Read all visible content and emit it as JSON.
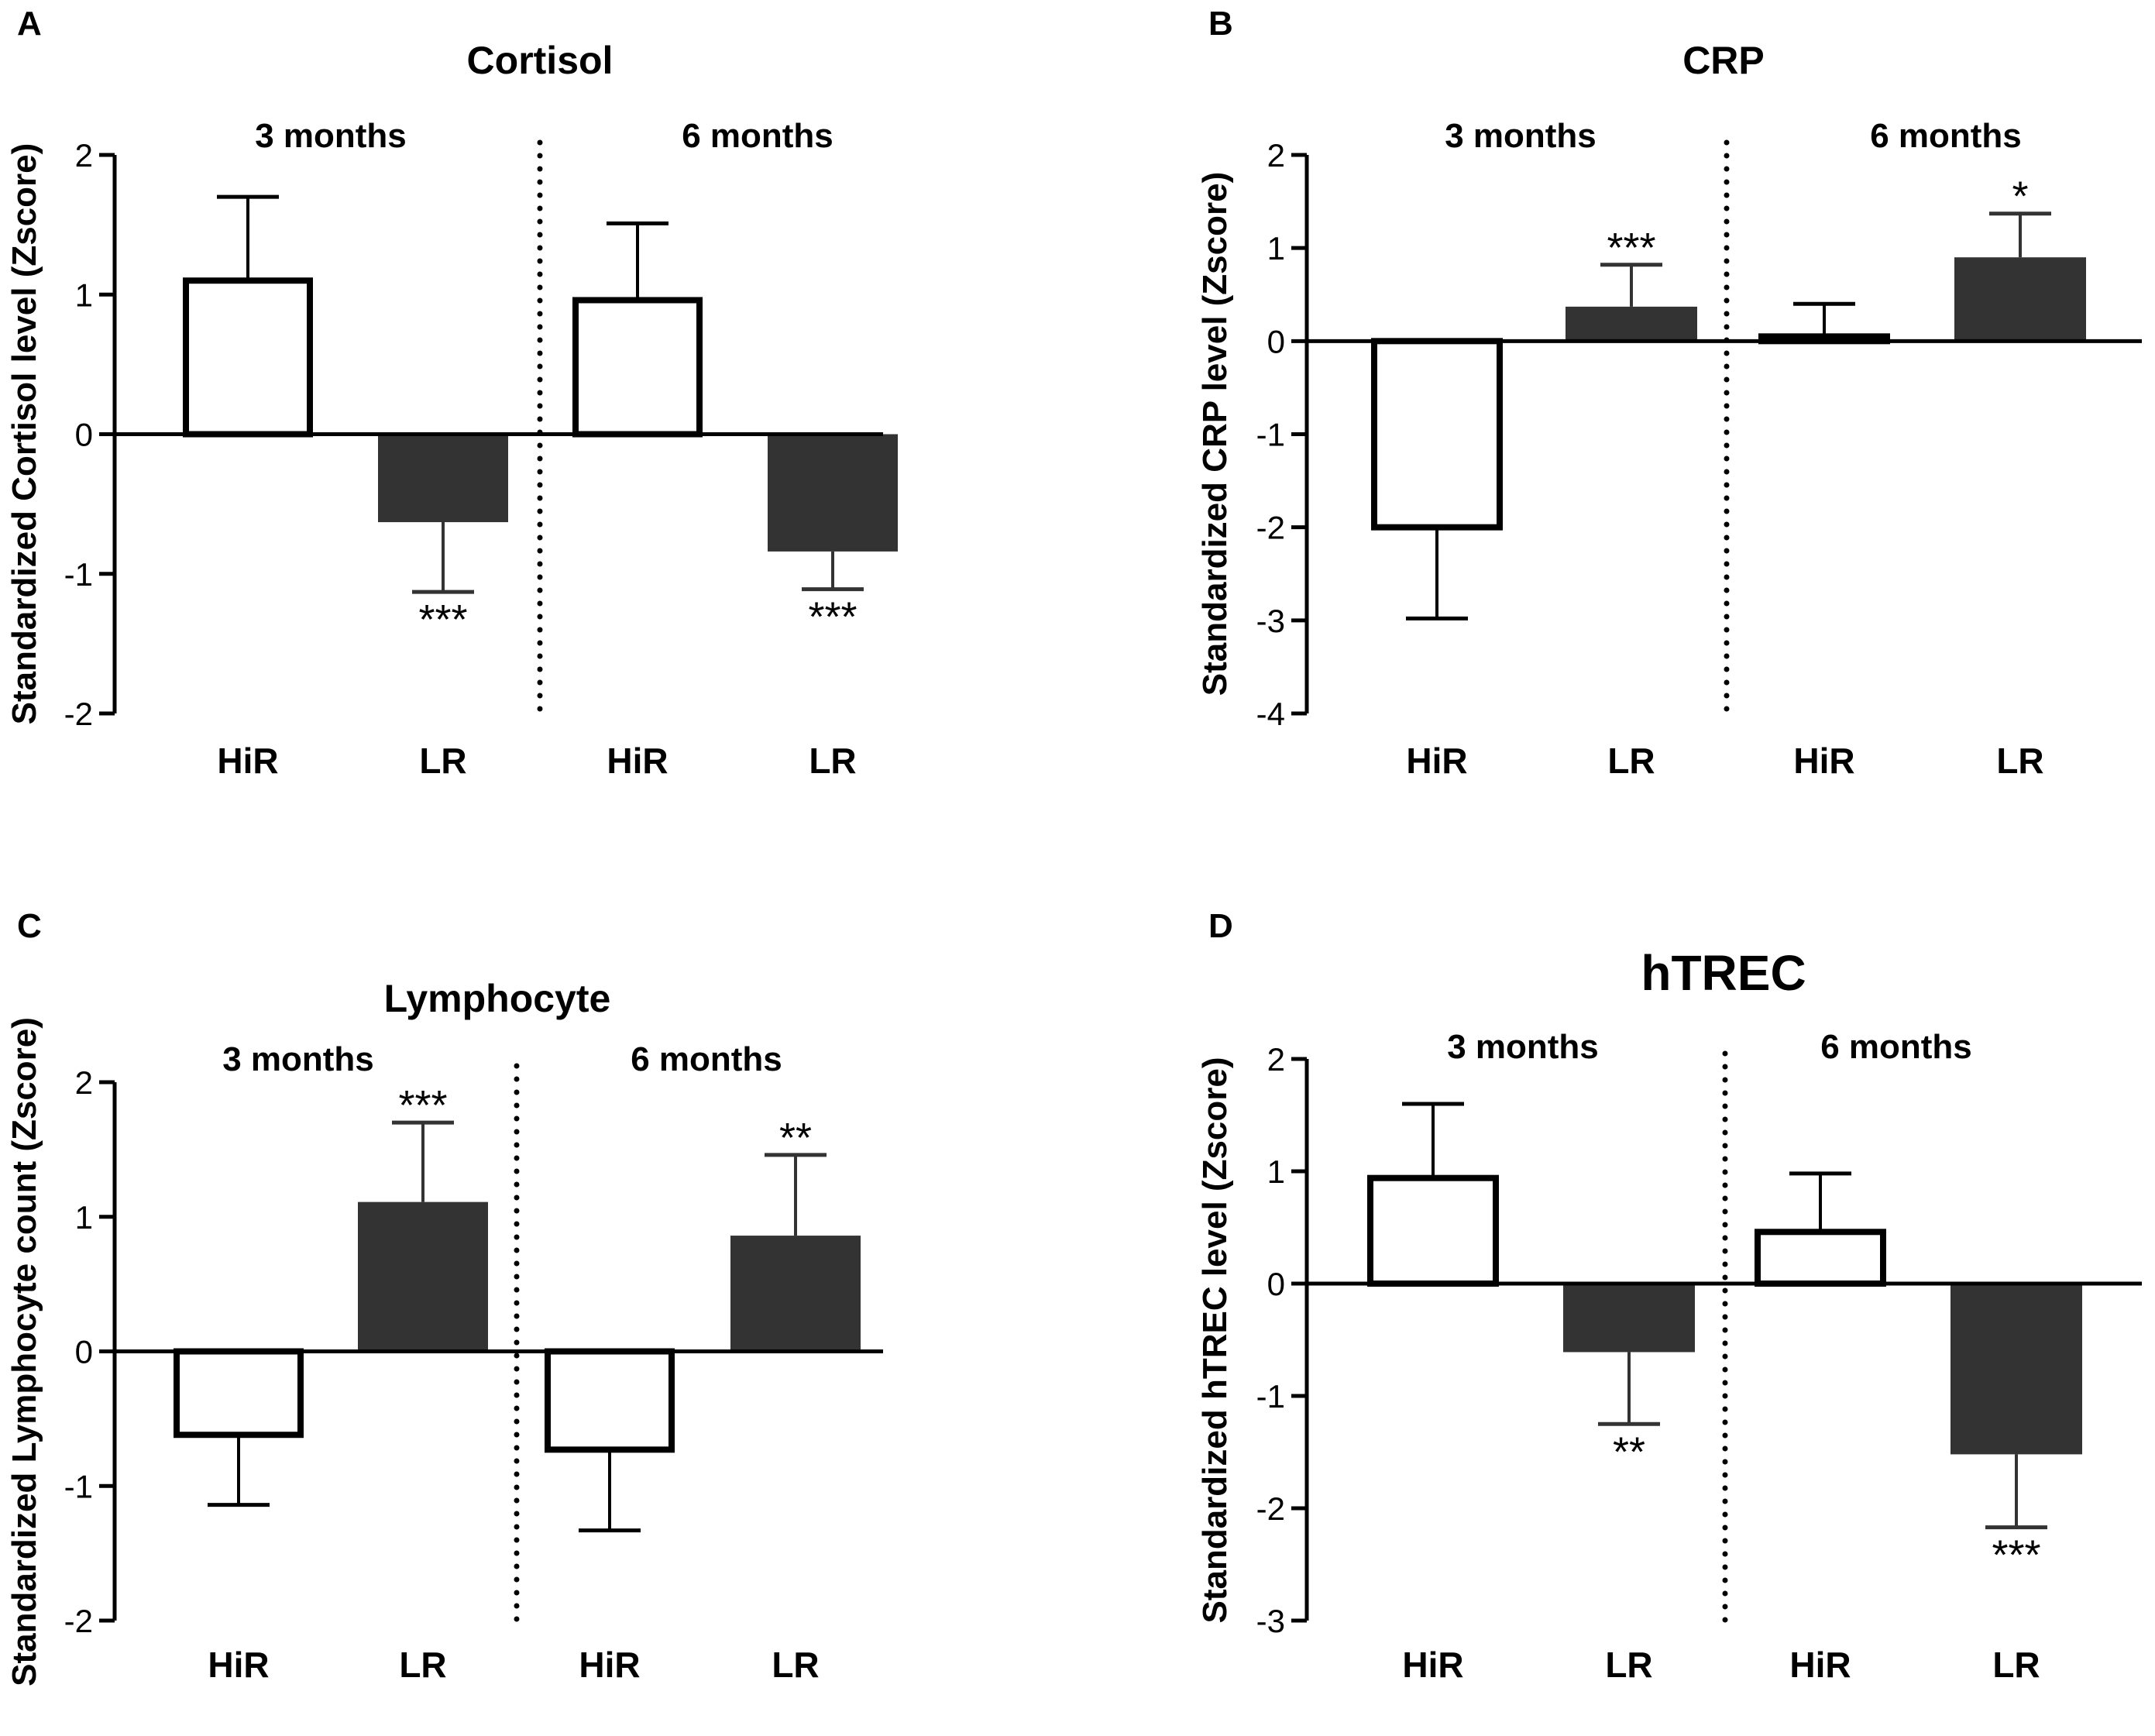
{
  "colors": {
    "hir_fill": "#ffffff",
    "lr_fill": "#333333",
    "stroke": "#000000",
    "errorbar": "#333333"
  },
  "chart_data": [
    {
      "panel": "A",
      "type": "bar",
      "title": "Cortisol",
      "ylabel": "Standardized Cortisol level (Zscore)",
      "ylim": [
        -2,
        2
      ],
      "yticks": [
        -2,
        -1,
        0,
        1,
        2
      ],
      "groups": [
        "3 months",
        "6 months"
      ],
      "categories": [
        "HiR",
        "LR",
        "HiR",
        "LR"
      ],
      "values": [
        1.1,
        -0.63,
        0.96,
        -0.84
      ],
      "errors": [
        0.6,
        0.5,
        0.55,
        0.27
      ],
      "fill": [
        "hir",
        "lr",
        "hir",
        "lr"
      ],
      "significance": [
        "",
        "***",
        "",
        "***"
      ]
    },
    {
      "panel": "B",
      "type": "bar",
      "title": "CRP",
      "ylabel": "Standardized CRP level (Zscore)",
      "ylim": [
        -4,
        2
      ],
      "yticks": [
        -4,
        -3,
        -2,
        -1,
        0,
        1,
        2
      ],
      "groups": [
        "3 months",
        "6 months"
      ],
      "categories": [
        "HiR",
        "LR",
        "HiR",
        "LR"
      ],
      "values": [
        -2.0,
        0.37,
        0.05,
        0.9
      ],
      "errors": [
        0.98,
        0.45,
        0.35,
        0.47
      ],
      "fill": [
        "hir",
        "lr",
        "hir",
        "lr"
      ],
      "significance": [
        "",
        "***",
        "",
        "*"
      ]
    },
    {
      "panel": "C",
      "type": "bar",
      "title": "Lymphocyte",
      "ylabel": "Standardized Lymphocyte count (Zscore)",
      "ylim": [
        -2,
        2
      ],
      "yticks": [
        -2,
        -1,
        0,
        1,
        2
      ],
      "groups": [
        "3 months",
        "6 months"
      ],
      "categories": [
        "HiR",
        "LR",
        "HiR",
        "LR"
      ],
      "values": [
        -0.62,
        1.11,
        -0.73,
        0.86
      ],
      "errors": [
        0.52,
        0.59,
        0.6,
        0.6
      ],
      "fill": [
        "hir",
        "lr",
        "hir",
        "lr"
      ],
      "significance": [
        "",
        "***",
        "",
        "**"
      ]
    },
    {
      "panel": "D",
      "type": "bar",
      "title": "hTREC",
      "ylabel": "Standardized hTREC level (Zscore)",
      "ylim": [
        -3,
        2
      ],
      "yticks": [
        -3,
        -2,
        -1,
        0,
        1,
        2
      ],
      "groups": [
        "3 months",
        "6 months"
      ],
      "categories": [
        "HiR",
        "LR",
        "HiR",
        "LR"
      ],
      "values": [
        0.94,
        -0.61,
        0.46,
        -1.52
      ],
      "errors": [
        0.66,
        0.64,
        0.52,
        0.65
      ],
      "fill": [
        "hir",
        "lr",
        "hir",
        "lr"
      ],
      "significance": [
        "",
        "**",
        "",
        "***"
      ]
    }
  ]
}
